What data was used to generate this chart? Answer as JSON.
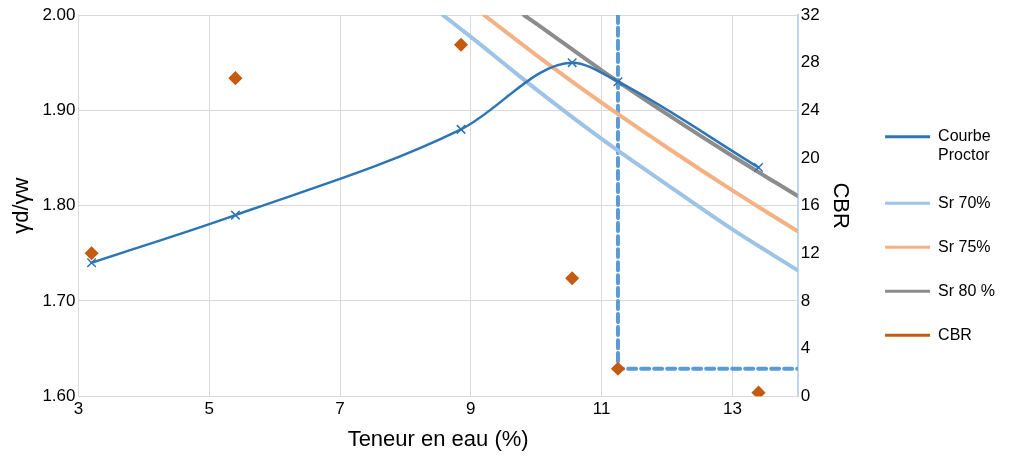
{
  "chart_data": {
    "type": "line",
    "xlabel": "Teneur en eau (%)",
    "ylabel": "γd/γw",
    "y2label": "CBR",
    "xlim": [
      3,
      14
    ],
    "xticks": [
      3,
      5,
      7,
      9,
      11,
      13
    ],
    "ylim": [
      1.6,
      2.0
    ],
    "yticks": [
      {
        "value": 1.6,
        "label": "1.60"
      },
      {
        "value": 1.7,
        "label": "1.70"
      },
      {
        "value": 1.8,
        "label": "1.80"
      },
      {
        "value": 1.9,
        "label": "1.90"
      },
      {
        "value": 2.0,
        "label": "2.00"
      }
    ],
    "y2lim": [
      0,
      32
    ],
    "y2ticks": [
      0,
      4,
      8,
      12,
      16,
      20,
      24,
      28,
      32
    ],
    "grid": true,
    "legend": "right",
    "series": [
      {
        "name": "Courbe Proctor",
        "type": "line",
        "marker": "cross",
        "color": "#2e75b6",
        "x": [
          3.2,
          5.4,
          8.85,
          10.55,
          11.25,
          13.4
        ],
        "values": [
          1.74,
          1.79,
          1.88,
          1.95,
          1.93,
          1.84
        ]
      },
      {
        "name": "Sr 70%",
        "type": "line",
        "marker": "none",
        "color": "#9dc3e6",
        "x": [
          8.57,
          9,
          10,
          11,
          12,
          13,
          14
        ],
        "values": [
          2.0,
          1.977,
          1.922,
          1.87,
          1.822,
          1.775,
          1.732
        ]
      },
      {
        "name": "Sr 75%",
        "type": "line",
        "marker": "none",
        "color": "#f4b183",
        "x": [
          9.2,
          10,
          11,
          12,
          13,
          14
        ],
        "values": [
          2.0,
          1.958,
          1.908,
          1.861,
          1.816,
          1.773
        ]
      },
      {
        "name": "Sr 80 %",
        "type": "line",
        "marker": "none",
        "color": "#8c8c8c",
        "x": [
          9.81,
          10,
          11,
          12,
          13,
          14
        ],
        "values": [
          2.0,
          1.991,
          1.942,
          1.896,
          1.852,
          1.81
        ]
      },
      {
        "name": "CBR",
        "type": "scatter",
        "marker": "diamond",
        "axis": "y2",
        "color": "#c55a11",
        "x": [
          3.2,
          5.4,
          8.85,
          10.55,
          11.25,
          13.4
        ],
        "values": [
          12,
          26.7,
          29.5,
          9.9,
          2.3,
          0.3
        ]
      },
      {
        "type": "line",
        "marker": "none",
        "line_style": "dashed",
        "axis": "y2",
        "color": "#5b9bd5",
        "x": [
          11.25,
          11.25,
          14
        ],
        "values": [
          32,
          2.3,
          2.3
        ]
      }
    ]
  }
}
